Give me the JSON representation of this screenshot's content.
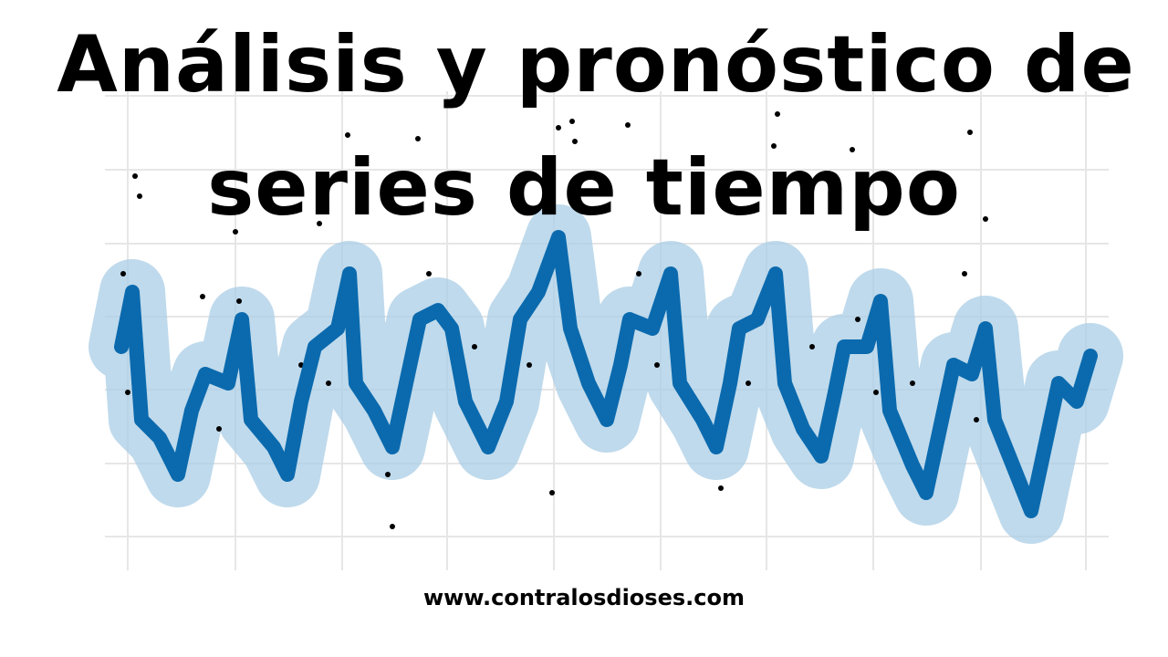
{
  "title": {
    "lines": [
      "Análisis y pronóstico de",
      "series de tiempo"
    ]
  },
  "footer": {
    "url": "www.contralosdioses.com"
  }
}
